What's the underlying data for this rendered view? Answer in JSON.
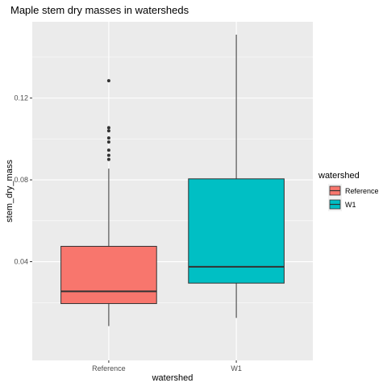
{
  "chart_data": {
    "type": "boxplot",
    "title": "Maple stem dry masses in watersheds",
    "xlabel": "watershed",
    "ylabel": "stem_dry_mass",
    "ylim": [
      0.0,
      0.151
    ],
    "y_ticks": [
      0.04,
      0.08,
      0.12
    ],
    "y_tick_labels": [
      "0.04",
      "0.08",
      "0.12"
    ],
    "categories": [
      "Reference",
      "W1"
    ],
    "grid": true,
    "legend": {
      "title": "watershed",
      "position": "right",
      "entries": [
        "Reference",
        "W1"
      ]
    },
    "boxes": [
      {
        "name": "Reference",
        "color": "#F8766D",
        "whisker_low": 0.0085,
        "q1": 0.0195,
        "median": 0.0255,
        "q3": 0.0475,
        "whisker_high": 0.0855,
        "outliers": [
          0.09,
          0.092,
          0.0945,
          0.0985,
          0.1005,
          0.104,
          0.1055,
          0.1285
        ]
      },
      {
        "name": "W1",
        "color": "#00BFC4",
        "whisker_low": 0.0125,
        "q1": 0.0295,
        "median": 0.0375,
        "q3": 0.0805,
        "whisker_high": 0.151,
        "outliers": []
      }
    ]
  }
}
